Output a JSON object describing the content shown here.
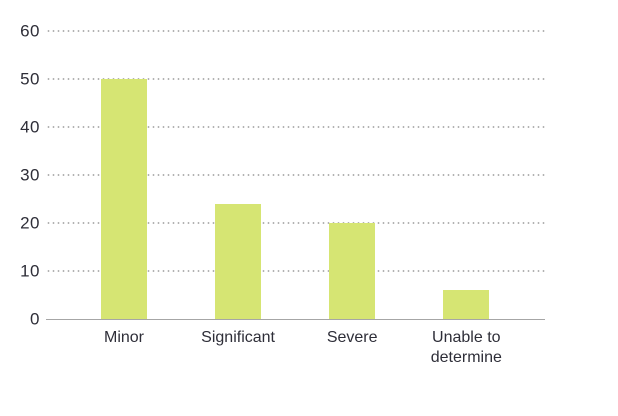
{
  "chart_data": {
    "type": "bar",
    "title": "",
    "xlabel": "",
    "ylabel": "",
    "categories": [
      "Minor",
      "Significant",
      "Severe",
      "Unable to determine"
    ],
    "values": [
      50,
      24,
      20,
      6
    ],
    "ylim": [
      0,
      60
    ],
    "yticks": [
      0,
      10,
      20,
      30,
      40,
      50,
      60
    ],
    "grid": "horizontal-dotted",
    "legend_position": "none"
  },
  "colors": {
    "bar": "#d6e573",
    "axis_text": "#2e2e38",
    "gridline": "#b2b2b2",
    "baseline": "#a6a6a6",
    "background": "#ffffff"
  }
}
